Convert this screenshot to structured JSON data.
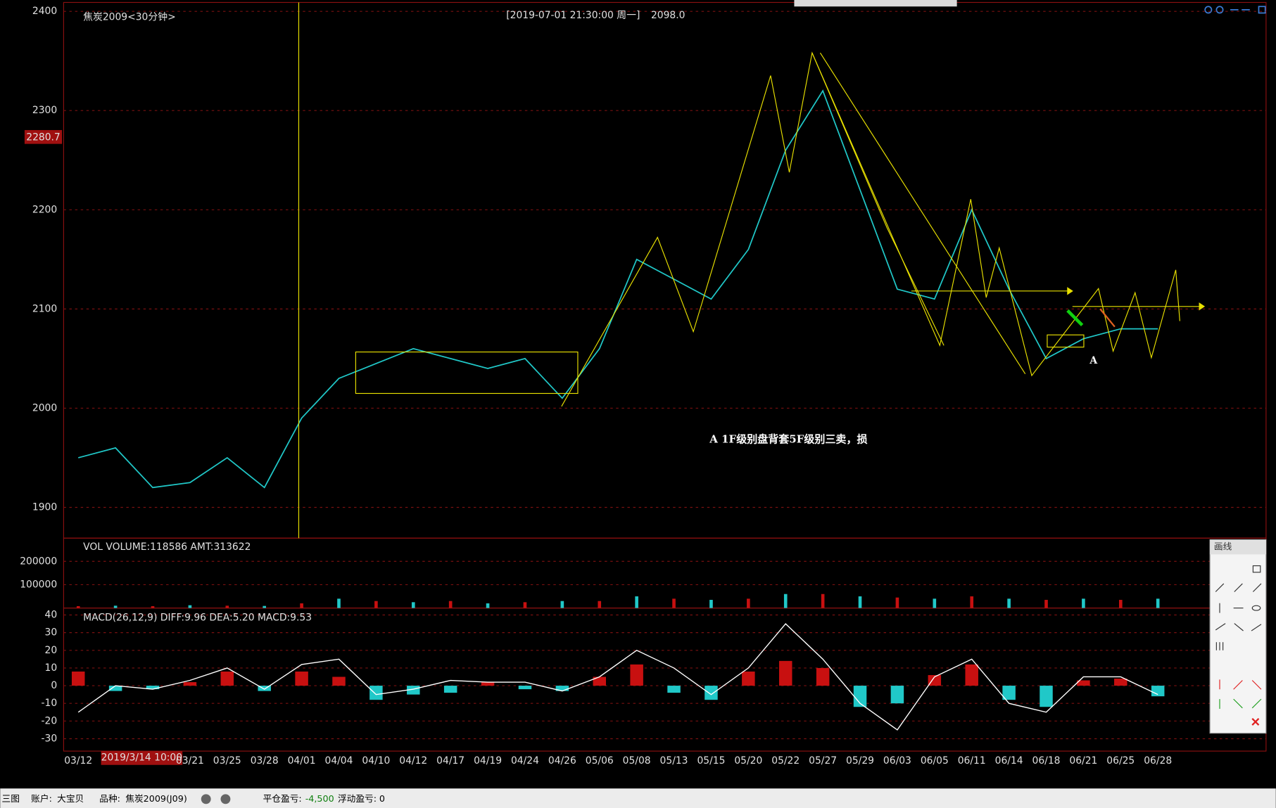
{
  "header": {
    "instrument": "焦炭2009<30分钟>",
    "datetime": "[2019-07-01  21:30:00 周一]",
    "price": "2098.0",
    "price_tag": "2280.7"
  },
  "chart_data": {
    "type": "line",
    "categories": [
      "03/12",
      null,
      null,
      "03/21",
      "03/25",
      "03/28",
      "04/01",
      "04/04",
      "04/10",
      "04/12",
      "04/17",
      "04/19",
      "04/24",
      "04/26",
      "05/06",
      "05/08",
      "05/13",
      "05/15",
      "05/20",
      "05/22",
      "05/27",
      "05/29",
      "06/03",
      "06/05",
      "06/11",
      "06/14",
      "06/18",
      "06/21",
      "06/25",
      "06/28"
    ],
    "values": [
      1950,
      1960,
      1920,
      1925,
      1950,
      1920,
      1990,
      2030,
      2045,
      2060,
      2050,
      2040,
      2050,
      2010,
      2060,
      2150,
      2130,
      2110,
      2160,
      2260,
      2320,
      2220,
      2120,
      2110,
      2200,
      2120,
      2050,
      2070,
      2080,
      2080
    ],
    "color": "#20c8c8",
    "ylim": [
      1869,
      2409
    ],
    "yticks": [
      1900,
      2000,
      2100,
      2200,
      2300,
      2400
    ],
    "grid": true,
    "annotations": [
      "A 1F级别盘背套5F级别三卖，损",
      "A"
    ],
    "cursor_label": "2019/3/14 10:00"
  },
  "volume": {
    "title": "VOL  VOLUME:118586 AMT:313622",
    "values": [
      8000,
      10000,
      8000,
      12000,
      10000,
      9000,
      20000,
      40000,
      30000,
      25000,
      30000,
      20000,
      25000,
      30000,
      30000,
      50000,
      40000,
      35000,
      40000,
      60000,
      60000,
      50000,
      45000,
      40000,
      50000,
      40000,
      35000,
      40000,
      35000,
      40000
    ],
    "ylim": [
      0,
      296000
    ],
    "yticks": [
      100000,
      200000
    ]
  },
  "macd": {
    "title": "MACD(26,12,9)  DIFF:9.96 DEA:5.20 MACD:9.53",
    "values": [
      8,
      -3,
      -2,
      2,
      8,
      -3,
      8,
      5,
      -8,
      -5,
      -4,
      2,
      -2,
      -3,
      5,
      12,
      -4,
      -8,
      8,
      14,
      10,
      -12,
      -10,
      6,
      12,
      -8,
      -12,
      3,
      4,
      -6
    ],
    "diff": [
      -15,
      0,
      -2,
      3,
      10,
      -2,
      12,
      15,
      -5,
      -2,
      3,
      2,
      2,
      -3,
      5,
      20,
      10,
      -5,
      10,
      35,
      15,
      -10,
      -25,
      5,
      15,
      -10,
      -15,
      5,
      5,
      -5
    ],
    "ylim": [
      -37,
      43
    ],
    "yticks": [
      -30,
      -20,
      -10,
      0,
      10,
      20,
      30,
      40
    ]
  },
  "toolbar": {
    "title": "画线"
  },
  "status": {
    "items": [
      "三图",
      "账户:",
      "大宝贝",
      "品种:",
      "焦炭2009(J09)",
      "平仓盈亏:",
      "-4,500",
      "浮动盈亏:",
      "0"
    ]
  }
}
